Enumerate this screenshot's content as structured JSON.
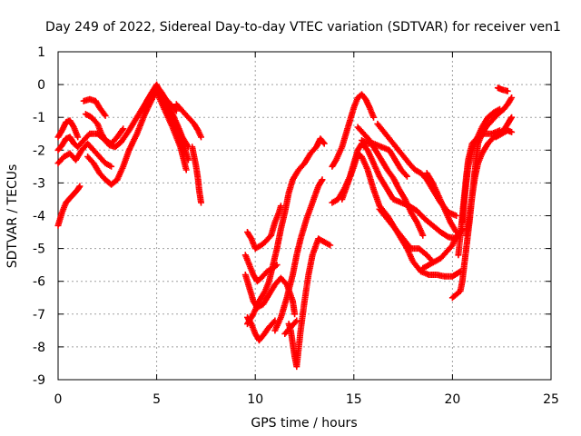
{
  "chart_data": {
    "type": "scatter",
    "title": "Day 249 of 2022, Sidereal Day-to-day VTEC variation (SDTVAR) for receiver ven1",
    "xlabel": "GPS time / hours",
    "ylabel": "SDTVAR / TECUs",
    "xlim": [
      0,
      25
    ],
    "ylim": [
      -9,
      1
    ],
    "xticks": [
      "0",
      "5",
      "10",
      "15",
      "20",
      "25"
    ],
    "yticks": [
      "1",
      "0",
      "-1",
      "-2",
      "-3",
      "-4",
      "-5",
      "-6",
      "-7",
      "-8",
      "-9"
    ],
    "grid": true,
    "marker": "+",
    "color": "#ff0000",
    "tracks": [
      [
        [
          0.0,
          -1.6
        ],
        [
          0.2,
          -1.4
        ],
        [
          0.4,
          -1.15
        ],
        [
          0.6,
          -1.1
        ],
        [
          0.8,
          -1.3
        ],
        [
          1.0,
          -1.6
        ]
      ],
      [
        [
          0.0,
          -2.0
        ],
        [
          0.2,
          -1.85
        ],
        [
          0.4,
          -1.65
        ],
        [
          0.6,
          -1.6
        ],
        [
          0.8,
          -1.8
        ],
        [
          1.0,
          -1.9
        ],
        [
          1.3,
          -1.7
        ],
        [
          1.6,
          -1.5
        ],
        [
          2.0,
          -1.5
        ],
        [
          2.3,
          -1.65
        ],
        [
          2.6,
          -1.85
        ],
        [
          2.9,
          -1.9
        ],
        [
          3.2,
          -1.75
        ],
        [
          3.6,
          -1.4
        ],
        [
          4.0,
          -1.0
        ],
        [
          4.4,
          -0.6
        ],
        [
          4.8,
          -0.2
        ],
        [
          5.0,
          -0.05
        ],
        [
          5.2,
          -0.2
        ],
        [
          5.5,
          -0.5
        ],
        [
          5.8,
          -0.9
        ],
        [
          6.0,
          -1.2
        ],
        [
          6.2,
          -1.5
        ],
        [
          6.4,
          -1.9
        ],
        [
          6.6,
          -2.3
        ]
      ],
      [
        [
          0.0,
          -2.4
        ],
        [
          0.3,
          -2.2
        ],
        [
          0.6,
          -2.1
        ],
        [
          0.9,
          -2.3
        ],
        [
          1.2,
          -2.0
        ],
        [
          1.5,
          -1.8
        ],
        [
          1.8,
          -2.0
        ],
        [
          2.1,
          -2.2
        ],
        [
          2.4,
          -2.4
        ],
        [
          2.7,
          -2.5
        ]
      ],
      [
        [
          1.5,
          -2.2
        ],
        [
          1.8,
          -2.4
        ],
        [
          2.1,
          -2.7
        ],
        [
          2.4,
          -2.9
        ],
        [
          2.7,
          -3.05
        ],
        [
          3.0,
          -2.9
        ],
        [
          3.3,
          -2.5
        ],
        [
          3.6,
          -2.0
        ],
        [
          4.0,
          -1.5
        ],
        [
          4.4,
          -0.9
        ],
        [
          4.8,
          -0.4
        ],
        [
          5.0,
          -0.2
        ],
        [
          5.2,
          -0.5
        ],
        [
          5.5,
          -0.9
        ],
        [
          5.8,
          -1.3
        ],
        [
          6.0,
          -1.6
        ],
        [
          6.2,
          -1.9
        ],
        [
          6.5,
          -2.6
        ]
      ],
      [
        [
          0.0,
          -4.3
        ],
        [
          0.1,
          -4.1
        ],
        [
          0.2,
          -3.9
        ],
        [
          0.3,
          -3.75
        ],
        [
          0.4,
          -3.6
        ],
        [
          0.55,
          -3.5
        ],
        [
          0.7,
          -3.4
        ],
        [
          0.85,
          -3.3
        ],
        [
          1.0,
          -3.2
        ],
        [
          1.1,
          -3.1
        ]
      ],
      [
        [
          1.3,
          -0.5
        ],
        [
          1.6,
          -0.45
        ],
        [
          1.9,
          -0.5
        ],
        [
          2.1,
          -0.7
        ],
        [
          2.4,
          -0.95
        ]
      ],
      [
        [
          1.4,
          -0.9
        ],
        [
          1.7,
          -1.0
        ],
        [
          2.0,
          -1.2
        ],
        [
          2.2,
          -1.5
        ],
        [
          2.4,
          -1.7
        ],
        [
          2.7,
          -1.8
        ],
        [
          3.0,
          -1.6
        ],
        [
          3.3,
          -1.35
        ]
      ],
      [
        [
          4.3,
          -0.75
        ],
        [
          4.6,
          -0.55
        ],
        [
          4.8,
          -0.3
        ],
        [
          5.0,
          -0.15
        ],
        [
          5.2,
          -0.2
        ],
        [
          5.4,
          -0.4
        ],
        [
          5.7,
          -0.6
        ],
        [
          6.0,
          -0.8
        ]
      ],
      [
        [
          4.5,
          -0.5
        ],
        [
          4.8,
          -0.2
        ],
        [
          5.0,
          0.0
        ],
        [
          5.2,
          -0.3
        ],
        [
          5.5,
          -0.65
        ],
        [
          5.8,
          -0.9
        ],
        [
          6.1,
          -1.3
        ],
        [
          6.3,
          -1.6
        ],
        [
          6.6,
          -1.9
        ]
      ],
      [
        [
          5.4,
          -0.6
        ],
        [
          5.7,
          -1.0
        ],
        [
          6.0,
          -1.45
        ],
        [
          6.2,
          -1.8
        ],
        [
          6.4,
          -2.1
        ]
      ],
      [
        [
          6.0,
          -0.6
        ],
        [
          6.3,
          -0.8
        ],
        [
          6.6,
          -1.0
        ],
        [
          6.9,
          -1.2
        ],
        [
          7.1,
          -1.4
        ],
        [
          7.25,
          -1.6
        ]
      ],
      [
        [
          6.8,
          -1.9
        ],
        [
          6.9,
          -2.2
        ],
        [
          7.0,
          -2.5
        ],
        [
          7.1,
          -2.9
        ],
        [
          7.15,
          -3.2
        ],
        [
          7.25,
          -3.6
        ]
      ],
      [
        [
          9.6,
          -4.5
        ],
        [
          9.8,
          -4.7
        ],
        [
          10.0,
          -5.0
        ],
        [
          10.3,
          -4.9
        ],
        [
          10.5,
          -4.8
        ],
        [
          10.8,
          -4.6
        ],
        [
          11.0,
          -4.2
        ],
        [
          11.2,
          -3.9
        ],
        [
          11.3,
          -3.7
        ]
      ],
      [
        [
          9.5,
          -5.2
        ],
        [
          9.7,
          -5.5
        ],
        [
          9.9,
          -5.8
        ],
        [
          10.1,
          -6.0
        ],
        [
          10.3,
          -5.9
        ],
        [
          10.6,
          -5.7
        ],
        [
          10.9,
          -5.6
        ],
        [
          11.1,
          -5.5
        ]
      ],
      [
        [
          9.5,
          -5.8
        ],
        [
          9.7,
          -6.2
        ],
        [
          9.9,
          -6.6
        ],
        [
          10.1,
          -6.8
        ],
        [
          10.4,
          -6.7
        ],
        [
          10.7,
          -6.4
        ],
        [
          11.0,
          -6.1
        ],
        [
          11.3,
          -5.9
        ],
        [
          11.6,
          -6.1
        ],
        [
          11.9,
          -6.6
        ],
        [
          12.0,
          -7.0
        ]
      ],
      [
        [
          9.6,
          -7.1
        ],
        [
          9.8,
          -7.3
        ],
        [
          10.0,
          -7.6
        ],
        [
          10.2,
          -7.8
        ],
        [
          10.4,
          -7.65
        ],
        [
          10.7,
          -7.4
        ],
        [
          11.0,
          -7.2
        ]
      ],
      [
        [
          9.6,
          -7.3
        ],
        [
          9.9,
          -7.0
        ],
        [
          10.2,
          -6.6
        ],
        [
          10.5,
          -6.3
        ],
        [
          10.7,
          -6.0
        ],
        [
          10.9,
          -5.5
        ],
        [
          11.1,
          -5.0
        ],
        [
          11.3,
          -4.4
        ],
        [
          11.5,
          -3.9
        ],
        [
          11.7,
          -3.3
        ],
        [
          11.9,
          -2.9
        ],
        [
          12.2,
          -2.6
        ],
        [
          12.5,
          -2.4
        ],
        [
          12.8,
          -2.1
        ],
        [
          13.1,
          -1.9
        ],
        [
          13.3,
          -1.65
        ],
        [
          13.5,
          -1.8
        ]
      ],
      [
        [
          11.0,
          -7.5
        ],
        [
          11.3,
          -7.1
        ],
        [
          11.6,
          -6.5
        ],
        [
          11.9,
          -5.8
        ],
        [
          12.1,
          -5.2
        ],
        [
          12.3,
          -4.7
        ],
        [
          12.6,
          -4.1
        ],
        [
          12.9,
          -3.6
        ],
        [
          13.2,
          -3.1
        ],
        [
          13.4,
          -2.9
        ]
      ],
      [
        [
          11.5,
          -7.6
        ],
        [
          11.8,
          -7.4
        ],
        [
          12.1,
          -7.2
        ]
      ],
      [
        [
          11.7,
          -7.3
        ],
        [
          11.8,
          -7.5
        ],
        [
          11.9,
          -7.9
        ],
        [
          12.0,
          -8.3
        ],
        [
          12.1,
          -8.6
        ],
        [
          12.3,
          -7.5
        ],
        [
          12.5,
          -6.6
        ],
        [
          12.7,
          -5.8
        ],
        [
          12.9,
          -5.2
        ],
        [
          13.2,
          -4.7
        ],
        [
          13.5,
          -4.8
        ],
        [
          13.8,
          -4.9
        ]
      ],
      [
        [
          13.9,
          -3.6
        ],
        [
          14.2,
          -3.5
        ],
        [
          14.5,
          -3.2
        ],
        [
          14.8,
          -2.8
        ],
        [
          15.0,
          -2.4
        ],
        [
          15.2,
          -2.0
        ],
        [
          15.4,
          -1.8
        ],
        [
          15.7,
          -2.0
        ],
        [
          16.0,
          -2.4
        ],
        [
          16.3,
          -2.8
        ],
        [
          16.7,
          -3.2
        ],
        [
          17.0,
          -3.5
        ],
        [
          17.4,
          -3.6
        ],
        [
          17.8,
          -3.7
        ],
        [
          18.2,
          -3.85
        ],
        [
          18.6,
          -4.1
        ],
        [
          19.0,
          -4.3
        ],
        [
          19.4,
          -4.5
        ],
        [
          19.8,
          -4.65
        ],
        [
          20.2,
          -4.7
        ],
        [
          20.5,
          -4.4
        ]
      ],
      [
        [
          13.9,
          -2.5
        ],
        [
          14.1,
          -2.3
        ],
        [
          14.4,
          -1.9
        ],
        [
          14.6,
          -1.5
        ],
        [
          14.8,
          -1.1
        ],
        [
          15.0,
          -0.7
        ],
        [
          15.2,
          -0.4
        ],
        [
          15.4,
          -0.3
        ],
        [
          15.6,
          -0.45
        ],
        [
          15.8,
          -0.7
        ],
        [
          16.0,
          -1.0
        ]
      ],
      [
        [
          14.4,
          -3.5
        ],
        [
          14.7,
          -3.0
        ],
        [
          15.0,
          -2.5
        ],
        [
          15.2,
          -2.1
        ],
        [
          15.4,
          -2.2
        ],
        [
          15.7,
          -2.6
        ],
        [
          16.0,
          -3.2
        ],
        [
          16.3,
          -3.7
        ],
        [
          16.7,
          -4.0
        ],
        [
          17.0,
          -4.3
        ],
        [
          17.4,
          -4.7
        ],
        [
          17.7,
          -5.0
        ],
        [
          18.0,
          -5.4
        ],
        [
          18.4,
          -5.7
        ],
        [
          18.8,
          -5.8
        ],
        [
          19.2,
          -5.8
        ],
        [
          19.6,
          -5.85
        ],
        [
          20.0,
          -5.85
        ],
        [
          20.4,
          -5.7
        ]
      ],
      [
        [
          15.4,
          -1.7
        ],
        [
          15.7,
          -1.8
        ],
        [
          16.0,
          -1.8
        ],
        [
          16.4,
          -1.9
        ],
        [
          16.8,
          -2.0
        ],
        [
          17.1,
          -2.3
        ],
        [
          17.4,
          -2.6
        ],
        [
          17.7,
          -2.8
        ]
      ],
      [
        [
          15.2,
          -1.3
        ],
        [
          15.5,
          -1.5
        ],
        [
          15.8,
          -1.7
        ],
        [
          16.1,
          -2.0
        ],
        [
          16.4,
          -2.3
        ],
        [
          16.7,
          -2.6
        ],
        [
          17.0,
          -2.85
        ],
        [
          17.3,
          -3.2
        ],
        [
          17.6,
          -3.5
        ],
        [
          17.9,
          -3.9
        ],
        [
          18.2,
          -4.2
        ],
        [
          18.5,
          -4.6
        ]
      ],
      [
        [
          16.2,
          -1.2
        ],
        [
          16.6,
          -1.5
        ],
        [
          17.0,
          -1.8
        ],
        [
          17.4,
          -2.1
        ],
        [
          17.8,
          -2.4
        ],
        [
          18.1,
          -2.6
        ],
        [
          18.4,
          -2.7
        ],
        [
          18.7,
          -2.9
        ],
        [
          19.0,
          -3.2
        ],
        [
          19.4,
          -3.6
        ],
        [
          19.8,
          -3.9
        ],
        [
          20.2,
          -4.0
        ]
      ],
      [
        [
          16.3,
          -3.8
        ],
        [
          16.7,
          -4.1
        ],
        [
          17.1,
          -4.4
        ],
        [
          17.5,
          -4.7
        ],
        [
          17.9,
          -5.0
        ],
        [
          18.3,
          -5.0
        ],
        [
          18.7,
          -5.2
        ],
        [
          19.0,
          -5.4
        ]
      ],
      [
        [
          18.5,
          -5.6
        ],
        [
          18.8,
          -5.5
        ],
        [
          19.1,
          -5.4
        ],
        [
          19.4,
          -5.3
        ],
        [
          19.7,
          -5.1
        ],
        [
          20.0,
          -4.9
        ],
        [
          20.2,
          -4.6
        ]
      ],
      [
        [
          18.7,
          -2.7
        ],
        [
          19.0,
          -3.0
        ],
        [
          19.3,
          -3.4
        ],
        [
          19.6,
          -3.8
        ],
        [
          19.9,
          -4.2
        ],
        [
          20.2,
          -4.5
        ]
      ],
      [
        [
          20.0,
          -6.5
        ],
        [
          20.2,
          -6.4
        ],
        [
          20.4,
          -6.3
        ],
        [
          20.5,
          -6.0
        ],
        [
          20.6,
          -5.5
        ],
        [
          20.7,
          -5.0
        ],
        [
          20.8,
          -4.5
        ],
        [
          20.9,
          -4.0
        ],
        [
          21.0,
          -3.4
        ],
        [
          21.1,
          -2.8
        ],
        [
          21.2,
          -2.3
        ],
        [
          21.3,
          -1.8
        ],
        [
          21.5,
          -1.5
        ],
        [
          21.7,
          -1.3
        ],
        [
          22.0,
          -1.1
        ],
        [
          22.3,
          -0.9
        ],
        [
          22.6,
          -0.75
        ],
        [
          22.8,
          -0.6
        ],
        [
          23.0,
          -0.4
        ]
      ],
      [
        [
          20.3,
          -5.2
        ],
        [
          20.4,
          -4.6
        ],
        [
          20.5,
          -4.0
        ],
        [
          20.6,
          -3.4
        ],
        [
          20.7,
          -2.8
        ],
        [
          20.8,
          -2.3
        ],
        [
          21.0,
          -1.8
        ],
        [
          21.3,
          -1.6
        ],
        [
          21.6,
          -1.5
        ],
        [
          22.0,
          -1.5
        ],
        [
          22.4,
          -1.4
        ]
      ],
      [
        [
          20.5,
          -4.2
        ],
        [
          20.6,
          -3.6
        ],
        [
          20.7,
          -3.0
        ],
        [
          20.8,
          -2.5
        ],
        [
          21.0,
          -2.0
        ],
        [
          21.2,
          -1.7
        ],
        [
          21.5,
          -1.3
        ],
        [
          21.8,
          -1.0
        ],
        [
          22.1,
          -0.85
        ],
        [
          22.4,
          -0.75
        ]
      ],
      [
        [
          20.7,
          -4.6
        ],
        [
          20.85,
          -4.0
        ],
        [
          21.0,
          -3.4
        ],
        [
          21.15,
          -2.8
        ],
        [
          21.3,
          -2.4
        ],
        [
          21.5,
          -2.1
        ],
        [
          21.8,
          -1.8
        ],
        [
          22.1,
          -1.6
        ],
        [
          22.4,
          -1.5
        ],
        [
          22.7,
          -1.3
        ],
        [
          22.9,
          -1.1
        ],
        [
          23.0,
          -1.0
        ]
      ],
      [
        [
          22.2,
          -1.6
        ],
        [
          22.5,
          -1.5
        ],
        [
          22.8,
          -1.4
        ],
        [
          23.0,
          -1.45
        ]
      ],
      [
        [
          22.3,
          -0.1
        ],
        [
          22.5,
          -0.15
        ],
        [
          22.8,
          -0.2
        ]
      ]
    ]
  }
}
